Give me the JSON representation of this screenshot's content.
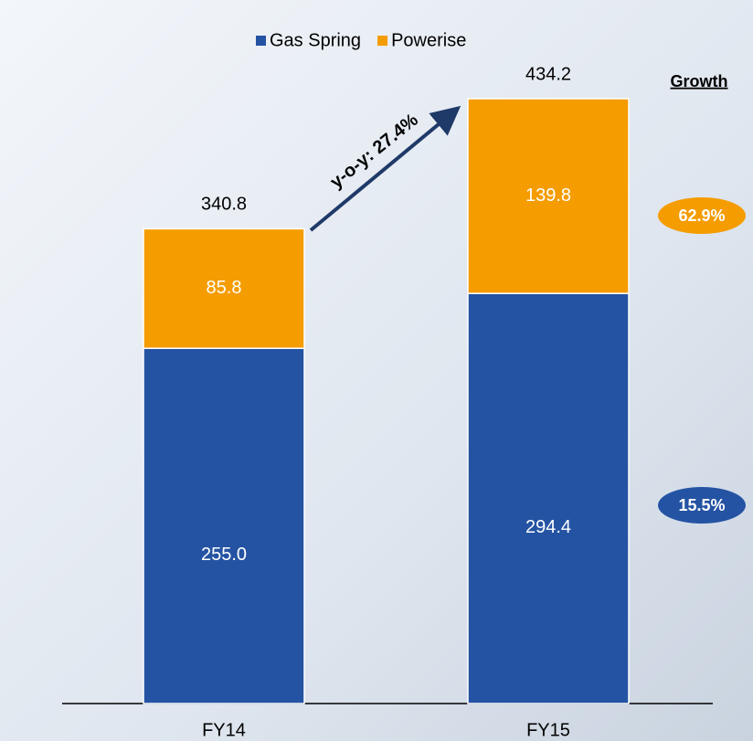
{
  "chart_data": {
    "type": "stacked_bar",
    "categories": [
      "FY14",
      "FY15"
    ],
    "series": [
      {
        "name": "Gas Spring",
        "color": "#2553a3",
        "values": [
          255.0,
          294.4
        ],
        "value_labels": [
          "255.0",
          "294.4"
        ],
        "growth": 15.5,
        "growth_label": "15.5%"
      },
      {
        "name": "Powerise",
        "color": "#f59c00",
        "values": [
          85.8,
          139.8
        ],
        "value_labels": [
          "85.8",
          "139.8"
        ],
        "growth": 62.9,
        "growth_label": "62.9%"
      }
    ],
    "totals": [
      340.8,
      434.2
    ],
    "total_labels": [
      "340.8",
      "434.2"
    ],
    "annotation": "y-o-y: 27.4%",
    "growth_title": "Growth"
  }
}
